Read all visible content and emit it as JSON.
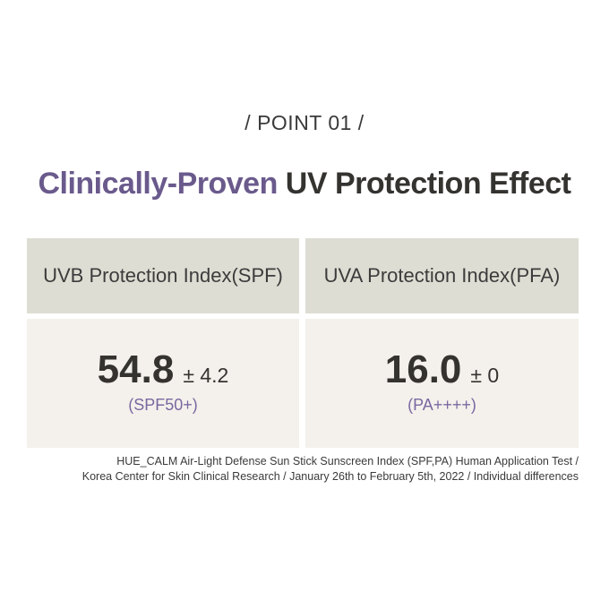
{
  "point_label": "/ POINT 01 /",
  "headline": {
    "accent": "Clinically-Proven",
    "rest": " UV Protection Effect"
  },
  "columns": [
    {
      "header": "UVB Protection Index(SPF)",
      "value": "54.8",
      "deviation": "± 4.2",
      "grade": "(SPF50+)"
    },
    {
      "header": "UVA Protection Index(PFA)",
      "value": "16.0",
      "deviation": "± 0",
      "grade": "(PA++++)"
    }
  ],
  "footnote": {
    "line1": "HUE_CALM Air-Light Defense Sun Stick Sunscreen Index (SPF,PA) Human Application Test /",
    "line2": "Korea Center for Skin Clinical Research / January 26th to February 5th, 2022 / Individual differences"
  },
  "colors": {
    "accent": "#6a5a8c",
    "header_bg": "#deddd3",
    "body_bg": "#f4f1ec",
    "grade_text": "#7a68a0"
  }
}
